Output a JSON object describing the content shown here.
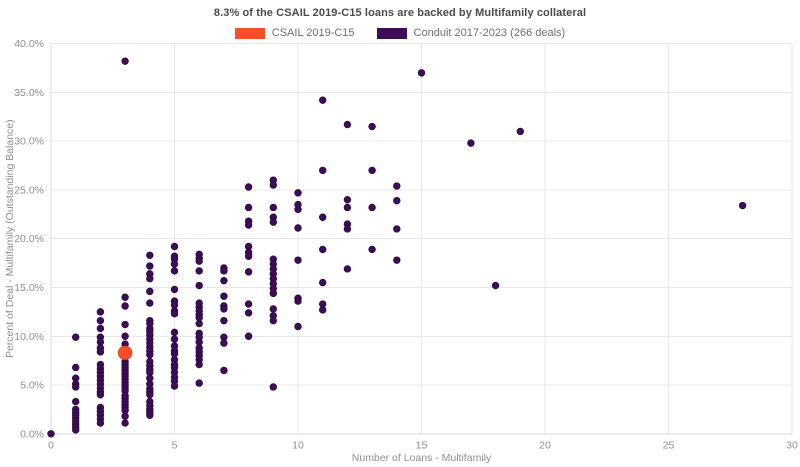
{
  "title": "8.3% of the CSAIL 2019-C15 loans are backed by Multifamily collateral",
  "legend": [
    {
      "label": "CSAIL 2019-C15",
      "color": "#f94e28"
    },
    {
      "label": "Conduit 2017-2023 (266 deals)",
      "color": "#3e0d58"
    }
  ],
  "colors": {
    "title_text": "#4a4a4a",
    "legend_text": "#6e6e6e",
    "tick_text": "#8e8e8e",
    "axis_title_text": "#8e8e8e",
    "gridline": "#e8e8e8",
    "axis_line": "#d9d9d9",
    "background": "#ffffff",
    "csail_point": "#f94e28",
    "conduit_point": "#3e0d58"
  },
  "chart_data": {
    "type": "scatter",
    "title": "8.3% of the CSAIL 2019-C15 loans are backed by Multifamily collateral",
    "xlabel": "Number of Loans - Multifamily",
    "ylabel": "Percent of Deal - Multifamily (Outstanding Balance)",
    "xlim": [
      0,
      30
    ],
    "ylim": [
      0,
      40
    ],
    "x_ticks": [
      0,
      5,
      10,
      15,
      20,
      25,
      30
    ],
    "x_tick_labels": [
      "0",
      "5",
      "10",
      "15",
      "20",
      "25",
      "30"
    ],
    "y_ticks": [
      0,
      5,
      10,
      15,
      20,
      25,
      30,
      35,
      40
    ],
    "y_tick_labels": [
      "0.0%",
      "5.0%",
      "10.0%",
      "15.0%",
      "20.0%",
      "25.0%",
      "30.0%",
      "35.0%",
      "40.0%"
    ],
    "grid": true,
    "legend_position": "top-center",
    "series": [
      {
        "name": "Conduit 2017-2023 (266 deals)",
        "color": "#3e0d58",
        "marker_radius": 3.3,
        "points": [
          [
            0,
            0.0
          ],
          [
            1,
            9.9
          ],
          [
            1,
            6.8
          ],
          [
            1,
            5.7
          ],
          [
            1,
            5.1
          ],
          [
            1,
            4.8
          ],
          [
            1,
            3.3
          ],
          [
            1,
            2.5
          ],
          [
            1,
            2.2
          ],
          [
            1,
            1.9
          ],
          [
            1,
            1.6
          ],
          [
            1,
            1.3
          ],
          [
            1,
            1.0
          ],
          [
            1,
            0.7
          ],
          [
            1,
            0.4
          ],
          [
            2,
            12.5
          ],
          [
            2,
            11.6
          ],
          [
            2,
            10.8
          ],
          [
            2,
            9.9
          ],
          [
            2,
            9.4
          ],
          [
            2,
            8.8
          ],
          [
            2,
            8.4
          ],
          [
            2,
            7.1
          ],
          [
            2,
            6.7
          ],
          [
            2,
            6.3
          ],
          [
            2,
            5.9
          ],
          [
            2,
            5.5
          ],
          [
            2,
            5.1
          ],
          [
            2,
            4.7
          ],
          [
            2,
            4.3
          ],
          [
            2,
            4.0
          ],
          [
            2,
            2.7
          ],
          [
            2,
            2.3
          ],
          [
            2,
            1.9
          ],
          [
            2,
            1.5
          ],
          [
            2,
            1.1
          ],
          [
            3,
            38.2
          ],
          [
            3,
            14.0
          ],
          [
            3,
            13.1
          ],
          [
            3,
            11.2
          ],
          [
            3,
            10.0
          ],
          [
            3,
            9.2
          ],
          [
            3,
            8.8
          ],
          [
            3,
            7.4
          ],
          [
            3,
            7.1
          ],
          [
            3,
            6.8
          ],
          [
            3,
            6.5
          ],
          [
            3,
            6.2
          ],
          [
            3,
            5.9
          ],
          [
            3,
            5.6
          ],
          [
            3,
            5.3
          ],
          [
            3,
            5.0
          ],
          [
            3,
            4.7
          ],
          [
            3,
            4.4
          ],
          [
            3,
            3.9
          ],
          [
            3,
            3.6
          ],
          [
            3,
            3.3
          ],
          [
            3,
            3.0
          ],
          [
            3,
            2.7
          ],
          [
            3,
            2.4
          ],
          [
            3,
            1.8
          ],
          [
            3,
            1.1
          ],
          [
            4,
            18.3
          ],
          [
            4,
            17.2
          ],
          [
            4,
            16.4
          ],
          [
            4,
            15.9
          ],
          [
            4,
            14.6
          ],
          [
            4,
            13.4
          ],
          [
            4,
            11.6
          ],
          [
            4,
            11.3
          ],
          [
            4,
            10.8
          ],
          [
            4,
            10.5
          ],
          [
            4,
            10.1
          ],
          [
            4,
            9.7
          ],
          [
            4,
            9.3
          ],
          [
            4,
            8.9
          ],
          [
            4,
            8.5
          ],
          [
            4,
            8.1
          ],
          [
            4,
            7.4
          ],
          [
            4,
            7.0
          ],
          [
            4,
            6.6
          ],
          [
            4,
            6.3
          ],
          [
            4,
            5.7
          ],
          [
            4,
            5.1
          ],
          [
            4,
            4.6
          ],
          [
            4,
            4.3
          ],
          [
            4,
            4.0
          ],
          [
            4,
            3.3
          ],
          [
            4,
            2.9
          ],
          [
            4,
            2.5
          ],
          [
            4,
            2.2
          ],
          [
            4,
            1.9
          ],
          [
            5,
            19.2
          ],
          [
            5,
            18.2
          ],
          [
            5,
            17.9
          ],
          [
            5,
            17.4
          ],
          [
            5,
            16.7
          ],
          [
            5,
            14.8
          ],
          [
            5,
            13.6
          ],
          [
            5,
            13.2
          ],
          [
            5,
            12.6
          ],
          [
            5,
            12.3
          ],
          [
            5,
            10.4
          ],
          [
            5,
            9.7
          ],
          [
            5,
            9.0
          ],
          [
            5,
            8.5
          ],
          [
            5,
            8.2
          ],
          [
            5,
            7.6
          ],
          [
            5,
            7.1
          ],
          [
            5,
            6.8
          ],
          [
            5,
            6.3
          ],
          [
            5,
            5.8
          ],
          [
            5,
            5.4
          ],
          [
            5,
            4.9
          ],
          [
            6,
            18.4
          ],
          [
            6,
            18.0
          ],
          [
            6,
            17.7
          ],
          [
            6,
            16.7
          ],
          [
            6,
            15.2
          ],
          [
            6,
            13.4
          ],
          [
            6,
            13.0
          ],
          [
            6,
            12.6
          ],
          [
            6,
            12.2
          ],
          [
            6,
            11.9
          ],
          [
            6,
            11.3
          ],
          [
            6,
            10.3
          ],
          [
            6,
            9.9
          ],
          [
            6,
            9.4
          ],
          [
            6,
            8.8
          ],
          [
            6,
            8.4
          ],
          [
            6,
            8.0
          ],
          [
            6,
            7.6
          ],
          [
            6,
            7.1
          ],
          [
            6,
            5.2
          ],
          [
            7,
            17.0
          ],
          [
            7,
            16.7
          ],
          [
            7,
            15.7
          ],
          [
            7,
            14.1
          ],
          [
            7,
            13.1
          ],
          [
            7,
            12.8
          ],
          [
            7,
            11.6
          ],
          [
            7,
            9.9
          ],
          [
            7,
            9.3
          ],
          [
            7,
            6.5
          ],
          [
            8,
            25.3
          ],
          [
            8,
            23.2
          ],
          [
            8,
            21.8
          ],
          [
            8,
            21.4
          ],
          [
            8,
            19.2
          ],
          [
            8,
            18.6
          ],
          [
            8,
            18.2
          ],
          [
            8,
            16.6
          ],
          [
            8,
            13.3
          ],
          [
            8,
            12.4
          ],
          [
            8,
            10.0
          ],
          [
            9,
            26.0
          ],
          [
            9,
            25.5
          ],
          [
            9,
            23.2
          ],
          [
            9,
            22.2
          ],
          [
            9,
            21.7
          ],
          [
            9,
            17.9
          ],
          [
            9,
            17.4
          ],
          [
            9,
            16.9
          ],
          [
            9,
            16.4
          ],
          [
            9,
            15.9
          ],
          [
            9,
            15.4
          ],
          [
            9,
            14.9
          ],
          [
            9,
            14.4
          ],
          [
            9,
            12.8
          ],
          [
            9,
            12.1
          ],
          [
            9,
            11.6
          ],
          [
            9,
            4.8
          ],
          [
            10,
            24.7
          ],
          [
            10,
            23.5
          ],
          [
            10,
            23.0
          ],
          [
            10,
            21.1
          ],
          [
            10,
            17.8
          ],
          [
            10,
            13.9
          ],
          [
            10,
            13.6
          ],
          [
            10,
            11.0
          ],
          [
            11,
            34.2
          ],
          [
            11,
            27.0
          ],
          [
            11,
            22.2
          ],
          [
            11,
            18.9
          ],
          [
            11,
            15.5
          ],
          [
            11,
            13.3
          ],
          [
            11,
            12.7
          ],
          [
            12,
            31.7
          ],
          [
            12,
            24.0
          ],
          [
            12,
            23.2
          ],
          [
            12,
            21.5
          ],
          [
            12,
            21.0
          ],
          [
            12,
            16.9
          ],
          [
            13,
            31.5
          ],
          [
            13,
            27.0
          ],
          [
            13,
            23.2
          ],
          [
            13,
            18.9
          ],
          [
            14,
            25.4
          ],
          [
            14,
            23.9
          ],
          [
            14,
            21.0
          ],
          [
            14,
            17.8
          ],
          [
            15,
            37.0
          ],
          [
            17,
            29.8
          ],
          [
            18,
            15.2
          ],
          [
            19,
            31.0
          ],
          [
            28,
            23.4
          ]
        ]
      },
      {
        "name": "CSAIL 2019-C15",
        "color": "#f94e28",
        "marker_radius": 6.8,
        "points": [
          [
            3,
            8.3
          ]
        ]
      }
    ]
  }
}
